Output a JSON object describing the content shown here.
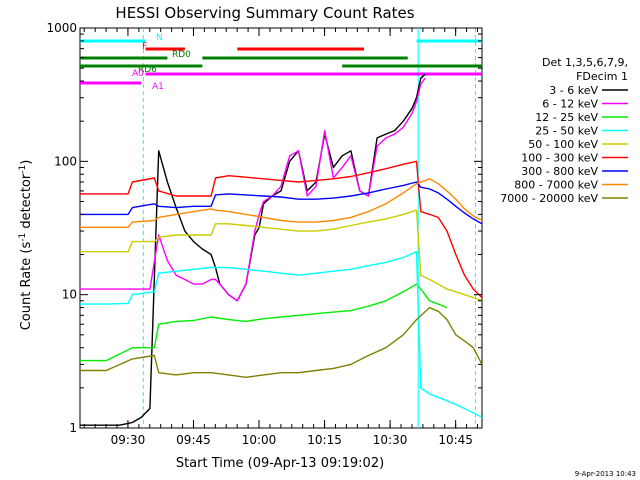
{
  "chart_data": {
    "type": "line",
    "title": "HESSI Observing Summary Count Rates",
    "xlabel": "Start Time (09-Apr-13 09:19:02)",
    "ylabel_main": "Count Rate (s",
    "ylabel_sup1": "-1",
    "ylabel_mid": " detector",
    "ylabel_sup2": "-1",
    "ylabel_end": ")",
    "x_unit": "minutes after 09:19:02",
    "xlim": [
      0,
      92
    ],
    "ylim": [
      1,
      1000
    ],
    "yscale": "log",
    "x_ticks": [
      {
        "label": "09:30",
        "x": 10.97
      },
      {
        "label": "09:45",
        "x": 25.97
      },
      {
        "label": "10:00",
        "x": 40.97
      },
      {
        "label": "10:15",
        "x": 55.97
      },
      {
        "label": "10:30",
        "x": 70.97
      },
      {
        "label": "10:45",
        "x": 85.97
      }
    ],
    "y_ticks": [
      {
        "label": "1",
        "y": 1
      },
      {
        "label": "10",
        "y": 10
      },
      {
        "label": "100",
        "y": 100
      },
      {
        "label": "1000",
        "y": 1000
      }
    ],
    "legend_header": [
      "Det 1,3,5,6,7,9,",
      "FDecim 1"
    ],
    "legend_position": "right",
    "series": [
      {
        "name": "3 - 6 keV",
        "color": "#000000",
        "x": [
          0,
          3,
          6,
          9,
          12,
          14,
          16,
          18,
          20,
          22,
          24,
          26,
          28,
          30,
          31,
          32,
          34,
          36,
          38,
          40,
          41,
          42,
          44,
          46,
          48,
          50,
          52,
          54,
          56,
          58,
          60,
          62,
          64,
          66,
          68,
          70,
          72,
          74,
          76,
          77,
          78,
          79
        ],
        "y": [
          1.05,
          1.05,
          1.05,
          1.05,
          1.1,
          1.2,
          1.4,
          120,
          70,
          45,
          30,
          25,
          22,
          20,
          16,
          12,
          10,
          9,
          12,
          28,
          32,
          48,
          55,
          60,
          100,
          120,
          60,
          70,
          160,
          90,
          110,
          120,
          60,
          55,
          150,
          160,
          170,
          200,
          250,
          300,
          420,
          450
        ]
      },
      {
        "name": "6 - 12 keV",
        "color": "#ff00ff",
        "x": [
          0,
          3,
          6,
          9,
          12,
          14,
          16,
          18,
          20,
          22,
          24,
          26,
          28,
          30,
          31,
          32,
          34,
          36,
          38,
          40,
          41,
          42,
          44,
          46,
          48,
          50,
          52,
          54,
          56,
          58,
          60,
          62,
          64,
          66,
          68,
          70,
          72,
          74,
          76,
          77,
          78,
          79
        ],
        "y": [
          11,
          11,
          11,
          11,
          11,
          11,
          11,
          28,
          18,
          14,
          13,
          12,
          12,
          13,
          13,
          12,
          10,
          9,
          12,
          30,
          40,
          50,
          55,
          65,
          110,
          120,
          55,
          65,
          170,
          75,
          90,
          110,
          60,
          55,
          130,
          150,
          160,
          180,
          230,
          280,
          380,
          420
        ]
      },
      {
        "name": "12 - 25 keV",
        "color": "#00ee00",
        "x": [
          0,
          6,
          12,
          17,
          18,
          22,
          26,
          30,
          34,
          38,
          42,
          46,
          50,
          54,
          58,
          62,
          66,
          70,
          74,
          77,
          78,
          80,
          82,
          84
        ],
        "y": [
          3.2,
          3.2,
          4.0,
          4.0,
          6.0,
          6.3,
          6.4,
          6.8,
          6.5,
          6.3,
          6.6,
          6.8,
          7.0,
          7.2,
          7.4,
          7.6,
          8.2,
          9.0,
          10.5,
          12,
          11,
          9.0,
          8.5,
          8.0
        ]
      },
      {
        "name": "25 - 50 keV",
        "color": "#00ffff",
        "x": [
          0,
          6,
          11,
          12,
          17,
          18,
          22,
          26,
          30,
          34,
          38,
          42,
          46,
          50,
          54,
          58,
          62,
          66,
          70,
          74,
          77,
          78,
          80,
          82,
          84,
          86,
          88,
          90,
          92
        ],
        "y": [
          8.5,
          8.5,
          8.6,
          10.0,
          10.5,
          14.5,
          15,
          15.5,
          16,
          16,
          15.5,
          15,
          14.5,
          14,
          14.5,
          15,
          15.5,
          16.5,
          17.5,
          19,
          21,
          2.0,
          1.8,
          1.7,
          1.6,
          1.5,
          1.4,
          1.3,
          1.2
        ]
      },
      {
        "name": "50 - 100 keV",
        "color": "#cccc00",
        "x": [
          0,
          6,
          11,
          12,
          17,
          18,
          22,
          26,
          30,
          31,
          34,
          38,
          42,
          46,
          50,
          54,
          58,
          62,
          66,
          70,
          74,
          77,
          78,
          80,
          82,
          84,
          86,
          88,
          90,
          92
        ],
        "y": [
          21,
          21,
          21,
          25,
          25,
          27,
          28,
          28,
          28,
          34,
          34,
          33,
          32,
          31,
          30,
          30,
          31,
          33,
          35,
          37,
          40,
          43,
          14,
          13,
          12,
          11,
          10.5,
          10,
          9.5,
          9
        ]
      },
      {
        "name": "100 - 300 keV",
        "color": "#ff0000",
        "x": [
          0,
          6,
          11,
          12,
          17,
          18,
          22,
          26,
          30,
          31,
          34,
          38,
          42,
          46,
          50,
          54,
          58,
          62,
          66,
          70,
          74,
          77,
          78,
          80,
          82,
          84,
          86,
          88,
          90,
          92
        ],
        "y": [
          57,
          57,
          57,
          70,
          75,
          60,
          55,
          55,
          55,
          75,
          78,
          76,
          74,
          72,
          70,
          72,
          74,
          77,
          82,
          88,
          95,
          100,
          42,
          40,
          38,
          30,
          20,
          14,
          11,
          9.5
        ]
      },
      {
        "name": "300 - 800 keV",
        "color": "#0000ff",
        "x": [
          0,
          6,
          11,
          12,
          17,
          18,
          22,
          26,
          30,
          31,
          34,
          38,
          42,
          46,
          50,
          54,
          58,
          62,
          66,
          70,
          74,
          77,
          78,
          80,
          82,
          84,
          86,
          88,
          90,
          92
        ],
        "y": [
          40,
          40,
          40,
          45,
          48,
          46,
          45,
          46,
          46,
          56,
          57,
          56,
          55,
          54,
          52,
          52,
          53,
          55,
          58,
          62,
          66,
          70,
          64,
          62,
          58,
          52,
          46,
          41,
          37,
          34
        ]
      },
      {
        "name": "800 - 7000 keV",
        "color": "#ff8800",
        "x": [
          0,
          6,
          11,
          12,
          17,
          18,
          22,
          26,
          30,
          31,
          34,
          38,
          42,
          46,
          50,
          54,
          58,
          62,
          66,
          70,
          74,
          77,
          80,
          82,
          84,
          86,
          88,
          90,
          92
        ],
        "y": [
          32,
          32,
          32,
          35,
          36,
          38,
          40,
          42,
          44,
          43,
          42,
          40,
          38,
          36,
          35,
          35,
          36,
          38,
          42,
          48,
          58,
          68,
          74,
          68,
          60,
          52,
          44,
          39,
          36
        ]
      },
      {
        "name": "7000 - 20000 keV",
        "color": "#808000",
        "x": [
          0,
          6,
          12,
          17,
          18,
          22,
          26,
          30,
          34,
          38,
          42,
          46,
          50,
          54,
          58,
          62,
          66,
          70,
          74,
          77,
          80,
          82,
          84,
          86,
          88,
          90,
          92
        ],
        "y": [
          2.7,
          2.7,
          3.3,
          3.5,
          2.6,
          2.5,
          2.6,
          2.6,
          2.5,
          2.4,
          2.5,
          2.6,
          2.6,
          2.7,
          2.8,
          3.0,
          3.5,
          4.0,
          5.0,
          6.5,
          8.0,
          7.5,
          6.5,
          5.0,
          4.5,
          4.0,
          3.0
        ]
      }
    ],
    "flag_bars": [
      {
        "label": "N",
        "color": "#00ffff",
        "segments": [
          [
            0,
            15
          ],
          [
            77,
            92
          ]
        ],
        "level": 0
      },
      {
        "label": "F",
        "color": "#ff0000",
        "segments": [
          [
            15,
            24
          ],
          [
            36,
            65
          ]
        ],
        "level": 1
      },
      {
        "label": "RD0",
        "color": "#008000",
        "segments": [
          [
            0,
            20
          ],
          [
            28,
            75
          ]
        ],
        "level": 2
      },
      {
        "label": "RD6",
        "color": "#008000",
        "segments": [
          [
            0,
            28
          ],
          [
            60,
            92
          ]
        ],
        "level": 3
      },
      {
        "label": "A0",
        "color": "#ff00ff",
        "segments": [
          [
            15,
            92
          ]
        ],
        "level": 4
      },
      {
        "label": "A1",
        "color": "#ff00ff",
        "segments": [
          [
            0,
            14
          ]
        ],
        "level": 5
      }
    ],
    "vertical_markers": [
      {
        "x": 14.5,
        "color": "#00ffff",
        "style": "dashed"
      },
      {
        "x": 77.4,
        "color": "#00ffff",
        "style": "solid"
      },
      {
        "x": 90.5,
        "color": "#00ffff",
        "style": "dashed"
      }
    ]
  },
  "footer": {
    "timestamp": "9-Apr-2013 10:43"
  }
}
